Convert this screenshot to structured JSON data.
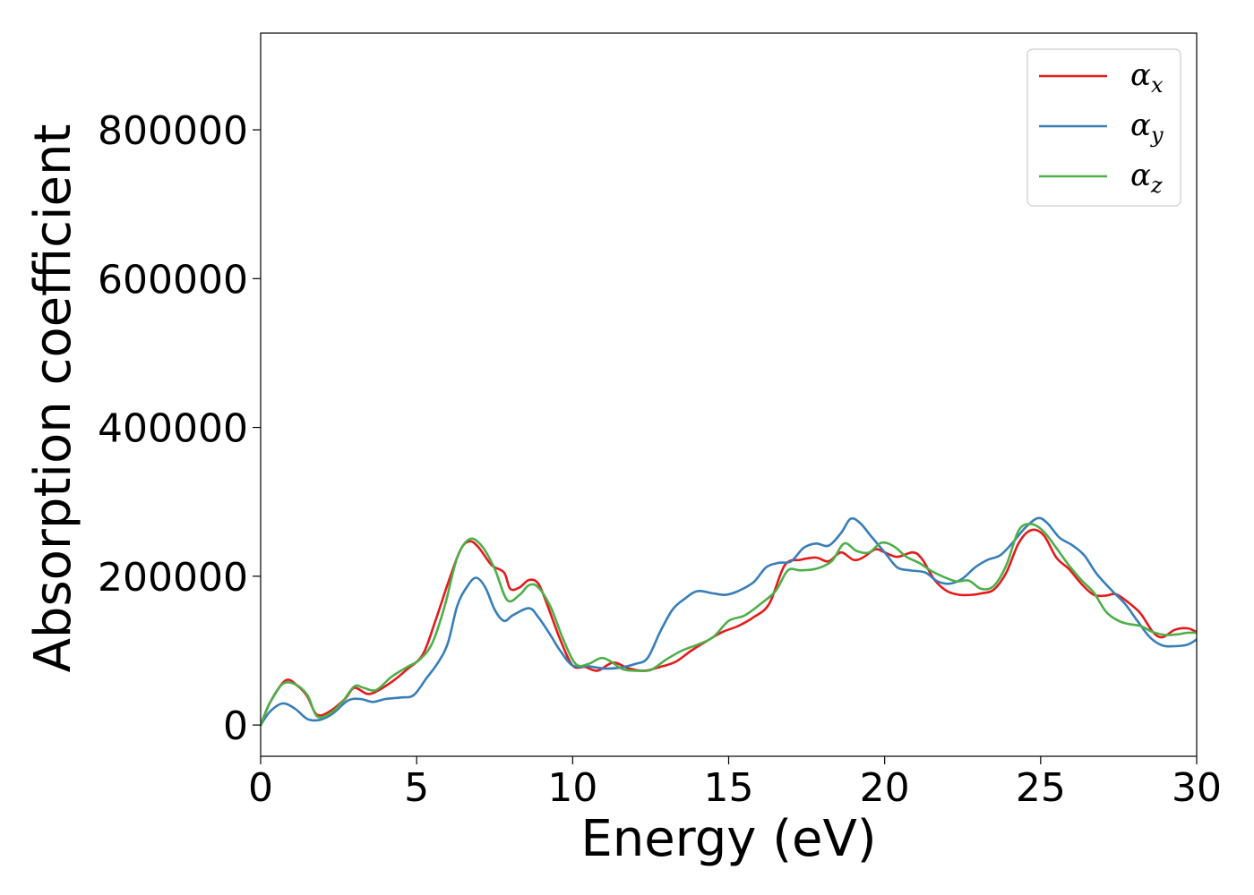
{
  "chart_data": {
    "type": "line",
    "title": "",
    "xlabel": "Energy (eV)",
    "ylabel": "Absorption coefficient",
    "xlim": [
      0,
      30
    ],
    "ylim": [
      -42000,
      930000
    ],
    "xticks": [
      0,
      5,
      10,
      15,
      20,
      25,
      30
    ],
    "xtick_labels": [
      "0",
      "5",
      "10",
      "15",
      "20",
      "25",
      "30"
    ],
    "yticks": [
      0,
      200000,
      400000,
      600000,
      800000
    ],
    "ytick_labels": [
      "0",
      "200000",
      "400000",
      "600000",
      "800000"
    ],
    "grid": false,
    "legend_position": "top-right",
    "series": [
      {
        "name": "α",
        "subscript": "x",
        "color": "#e41a1c",
        "points": [
          [
            0,
            0
          ],
          [
            0.3,
            30000
          ],
          [
            0.8,
            60000
          ],
          [
            1.2,
            52000
          ],
          [
            1.5,
            38000
          ],
          [
            1.8,
            14000
          ],
          [
            2.2,
            18000
          ],
          [
            2.7,
            35000
          ],
          [
            3.0,
            50000
          ],
          [
            3.4,
            42000
          ],
          [
            3.7,
            45000
          ],
          [
            4.2,
            58000
          ],
          [
            4.7,
            75000
          ],
          [
            5.2,
            95000
          ],
          [
            5.6,
            140000
          ],
          [
            6.0,
            190000
          ],
          [
            6.4,
            235000
          ],
          [
            6.7,
            247000
          ],
          [
            7.0,
            238000
          ],
          [
            7.4,
            215000
          ],
          [
            7.8,
            205000
          ],
          [
            8.0,
            183000
          ],
          [
            8.3,
            185000
          ],
          [
            8.6,
            195000
          ],
          [
            8.9,
            190000
          ],
          [
            9.2,
            160000
          ],
          [
            9.6,
            115000
          ],
          [
            10.0,
            80000
          ],
          [
            10.4,
            78000
          ],
          [
            10.8,
            73000
          ],
          [
            11.3,
            84000
          ],
          [
            11.8,
            76000
          ],
          [
            12.3,
            73000
          ],
          [
            12.8,
            78000
          ],
          [
            13.3,
            85000
          ],
          [
            13.8,
            100000
          ],
          [
            14.3,
            113000
          ],
          [
            14.8,
            125000
          ],
          [
            15.3,
            133000
          ],
          [
            15.8,
            145000
          ],
          [
            16.3,
            163000
          ],
          [
            16.8,
            215000
          ],
          [
            17.3,
            222000
          ],
          [
            17.8,
            225000
          ],
          [
            18.2,
            220000
          ],
          [
            18.6,
            232000
          ],
          [
            19.0,
            222000
          ],
          [
            19.3,
            225000
          ],
          [
            19.7,
            236000
          ],
          [
            20.0,
            232000
          ],
          [
            20.4,
            226000
          ],
          [
            20.9,
            232000
          ],
          [
            21.2,
            223000
          ],
          [
            21.6,
            195000
          ],
          [
            22.0,
            180000
          ],
          [
            22.4,
            175000
          ],
          [
            22.8,
            175000
          ],
          [
            23.1,
            177000
          ],
          [
            23.5,
            182000
          ],
          [
            23.9,
            205000
          ],
          [
            24.3,
            245000
          ],
          [
            24.7,
            262000
          ],
          [
            25.1,
            255000
          ],
          [
            25.5,
            225000
          ],
          [
            25.9,
            210000
          ],
          [
            26.3,
            190000
          ],
          [
            26.7,
            175000
          ],
          [
            27.1,
            174000
          ],
          [
            27.4,
            176000
          ],
          [
            27.8,
            165000
          ],
          [
            28.2,
            150000
          ],
          [
            28.6,
            125000
          ],
          [
            28.9,
            118000
          ],
          [
            29.3,
            128000
          ],
          [
            29.7,
            130000
          ],
          [
            30.0,
            125000
          ]
        ]
      },
      {
        "name": "α",
        "subscript": "y",
        "color": "#377eb8",
        "points": [
          [
            0,
            0
          ],
          [
            0.3,
            18000
          ],
          [
            0.7,
            29000
          ],
          [
            1.1,
            22000
          ],
          [
            1.5,
            8000
          ],
          [
            1.9,
            7000
          ],
          [
            2.3,
            15000
          ],
          [
            2.8,
            33000
          ],
          [
            3.2,
            35000
          ],
          [
            3.6,
            31000
          ],
          [
            4.0,
            35000
          ],
          [
            4.5,
            37000
          ],
          [
            4.9,
            40000
          ],
          [
            5.3,
            62000
          ],
          [
            5.7,
            85000
          ],
          [
            6.0,
            110000
          ],
          [
            6.3,
            160000
          ],
          [
            6.6,
            185000
          ],
          [
            6.9,
            198000
          ],
          [
            7.2,
            185000
          ],
          [
            7.5,
            155000
          ],
          [
            7.8,
            140000
          ],
          [
            8.1,
            148000
          ],
          [
            8.6,
            157000
          ],
          [
            8.9,
            145000
          ],
          [
            9.3,
            120000
          ],
          [
            9.6,
            100000
          ],
          [
            10.0,
            80000
          ],
          [
            10.5,
            79000
          ],
          [
            11.0,
            76000
          ],
          [
            11.5,
            77000
          ],
          [
            12.0,
            82000
          ],
          [
            12.4,
            90000
          ],
          [
            12.8,
            125000
          ],
          [
            13.2,
            155000
          ],
          [
            13.6,
            170000
          ],
          [
            14.0,
            180000
          ],
          [
            14.5,
            177000
          ],
          [
            14.9,
            175000
          ],
          [
            15.3,
            180000
          ],
          [
            15.8,
            192000
          ],
          [
            16.2,
            212000
          ],
          [
            16.6,
            218000
          ],
          [
            17.0,
            220000
          ],
          [
            17.4,
            238000
          ],
          [
            17.8,
            244000
          ],
          [
            18.2,
            241000
          ],
          [
            18.6,
            258000
          ],
          [
            18.9,
            277000
          ],
          [
            19.2,
            272000
          ],
          [
            19.6,
            252000
          ],
          [
            20.0,
            232000
          ],
          [
            20.4,
            212000
          ],
          [
            20.8,
            208000
          ],
          [
            21.3,
            205000
          ],
          [
            21.7,
            193000
          ],
          [
            22.1,
            190000
          ],
          [
            22.5,
            197000
          ],
          [
            22.9,
            212000
          ],
          [
            23.3,
            222000
          ],
          [
            23.7,
            228000
          ],
          [
            24.1,
            245000
          ],
          [
            24.5,
            265000
          ],
          [
            24.9,
            278000
          ],
          [
            25.2,
            272000
          ],
          [
            25.6,
            252000
          ],
          [
            26.0,
            242000
          ],
          [
            26.4,
            228000
          ],
          [
            26.8,
            203000
          ],
          [
            27.3,
            180000
          ],
          [
            27.7,
            163000
          ],
          [
            28.1,
            140000
          ],
          [
            28.5,
            118000
          ],
          [
            28.9,
            107000
          ],
          [
            29.3,
            106000
          ],
          [
            29.7,
            108000
          ],
          [
            30.0,
            115000
          ]
        ]
      },
      {
        "name": "α",
        "subscript": "z",
        "color": "#4daf4a",
        "points": [
          [
            0,
            0
          ],
          [
            0.3,
            30000
          ],
          [
            0.7,
            55000
          ],
          [
            1.1,
            55000
          ],
          [
            1.5,
            40000
          ],
          [
            1.8,
            12000
          ],
          [
            2.2,
            15000
          ],
          [
            2.6,
            30000
          ],
          [
            3.0,
            52000
          ],
          [
            3.3,
            50000
          ],
          [
            3.7,
            47000
          ],
          [
            4.2,
            65000
          ],
          [
            4.7,
            78000
          ],
          [
            5.1,
            88000
          ],
          [
            5.5,
            110000
          ],
          [
            5.9,
            160000
          ],
          [
            6.3,
            225000
          ],
          [
            6.7,
            250000
          ],
          [
            7.1,
            240000
          ],
          [
            7.5,
            210000
          ],
          [
            7.9,
            168000
          ],
          [
            8.3,
            175000
          ],
          [
            8.6,
            188000
          ],
          [
            8.9,
            185000
          ],
          [
            9.3,
            158000
          ],
          [
            9.7,
            115000
          ],
          [
            10.1,
            82000
          ],
          [
            10.5,
            82000
          ],
          [
            10.9,
            90000
          ],
          [
            11.2,
            86000
          ],
          [
            11.6,
            75000
          ],
          [
            12.0,
            73000
          ],
          [
            12.5,
            74000
          ],
          [
            13.0,
            88000
          ],
          [
            13.5,
            100000
          ],
          [
            14.0,
            108000
          ],
          [
            14.5,
            118000
          ],
          [
            15.0,
            140000
          ],
          [
            15.5,
            147000
          ],
          [
            16.0,
            162000
          ],
          [
            16.5,
            180000
          ],
          [
            16.9,
            208000
          ],
          [
            17.3,
            208000
          ],
          [
            17.8,
            210000
          ],
          [
            18.3,
            220000
          ],
          [
            18.7,
            244000
          ],
          [
            19.1,
            234000
          ],
          [
            19.5,
            232000
          ],
          [
            19.9,
            245000
          ],
          [
            20.3,
            240000
          ],
          [
            20.7,
            226000
          ],
          [
            21.1,
            218000
          ],
          [
            21.5,
            207000
          ],
          [
            21.9,
            199000
          ],
          [
            22.3,
            193000
          ],
          [
            22.7,
            194000
          ],
          [
            23.1,
            183000
          ],
          [
            23.5,
            187000
          ],
          [
            23.9,
            215000
          ],
          [
            24.3,
            262000
          ],
          [
            24.7,
            270000
          ],
          [
            25.1,
            260000
          ],
          [
            25.5,
            238000
          ],
          [
            25.9,
            215000
          ],
          [
            26.3,
            195000
          ],
          [
            26.7,
            178000
          ],
          [
            27.1,
            152000
          ],
          [
            27.5,
            140000
          ],
          [
            27.8,
            136000
          ],
          [
            28.2,
            133000
          ],
          [
            28.6,
            125000
          ],
          [
            29.0,
            121000
          ],
          [
            29.4,
            122000
          ],
          [
            29.7,
            124000
          ],
          [
            30.0,
            124000
          ]
        ]
      }
    ]
  }
}
